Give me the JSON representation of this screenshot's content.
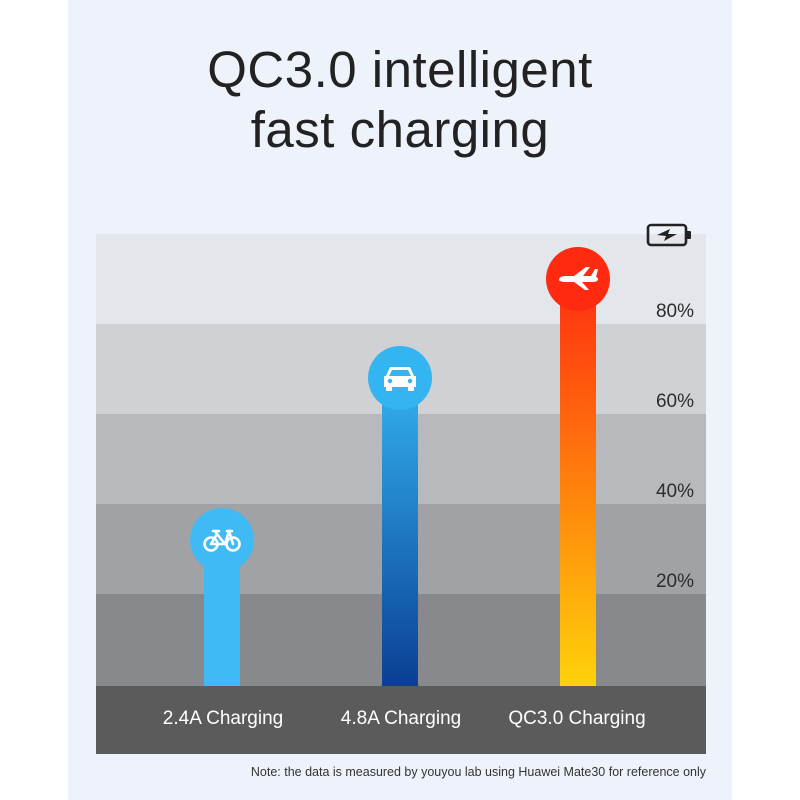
{
  "title_lines": [
    "QC3.0 intelligent",
    "fast charging"
  ],
  "note": "Note: the data is measured by youyou lab using Huawei Mate30 for reference only",
  "colors": {
    "bar_2_4a": "#3fbaf4",
    "bar_4_8a_top": "#35b4f2",
    "bar_4_8a_bottom": "#0a3f94",
    "bar_qc3_top": "#ff2a10",
    "bar_qc3_bottom": "#ffd20a",
    "category_band": "#5b5b5b"
  },
  "chart_data": {
    "type": "bar",
    "title": "QC3.0 intelligent fast charging",
    "categories": [
      "2.4A Charging",
      "4.8A Charging",
      "QC3.0 Charging"
    ],
    "values": [
      34,
      70,
      92
    ],
    "icons": [
      "bicycle-icon",
      "car-icon",
      "airplane-icon"
    ],
    "ylim": [
      0,
      100
    ],
    "ytick_labels": [
      "20%",
      "40%",
      "60%",
      "80%"
    ],
    "yaxis_icon": "battery-charging-icon",
    "grid": true,
    "unit": "%"
  }
}
